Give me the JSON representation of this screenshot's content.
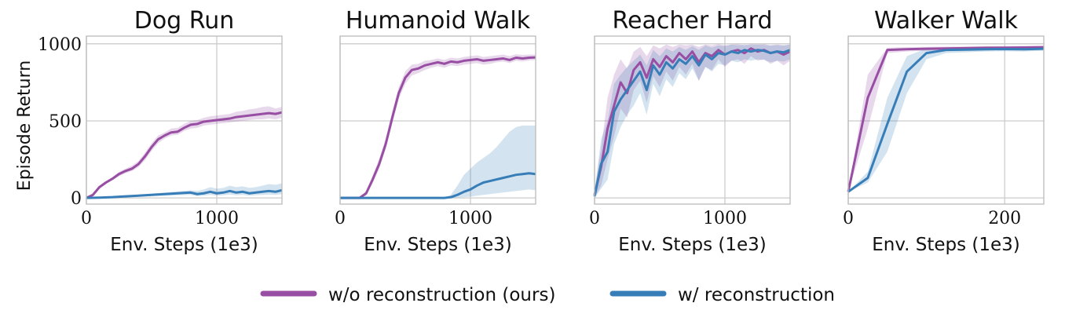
{
  "figure": {
    "ylabel": "Episode Return",
    "legend": [
      {
        "label": "w/o reconstruction (ours)",
        "color": "#984ea3"
      },
      {
        "label": "w/ reconstruction",
        "color": "#377eb8"
      }
    ]
  },
  "chart_data": [
    {
      "type": "line",
      "title": "Dog Run",
      "xlabel": "Env. Steps (1e3)",
      "ylabel": "Episode Return",
      "xlim": [
        0,
        1500
      ],
      "ylim": [
        -40,
        1050
      ],
      "xticks": [
        0,
        1000
      ],
      "yticks": [
        0,
        500,
        1000
      ],
      "ytick_labels": [
        "0",
        "500",
        "1000"
      ],
      "series": [
        {
          "name": "w/o reconstruction (ours)",
          "color": "#984ea3",
          "x": [
            0,
            50,
            100,
            150,
            200,
            250,
            300,
            350,
            400,
            450,
            500,
            550,
            600,
            650,
            700,
            750,
            800,
            850,
            900,
            950,
            1000,
            1050,
            1100,
            1150,
            1200,
            1250,
            1300,
            1350,
            1400,
            1450,
            1500
          ],
          "y": [
            0,
            20,
            70,
            100,
            125,
            155,
            175,
            190,
            220,
            270,
            330,
            380,
            405,
            425,
            430,
            455,
            475,
            480,
            495,
            500,
            505,
            510,
            515,
            525,
            530,
            535,
            540,
            545,
            550,
            545,
            555
          ],
          "lower": [
            0,
            15,
            60,
            90,
            115,
            140,
            160,
            175,
            200,
            245,
            305,
            355,
            385,
            405,
            410,
            435,
            450,
            455,
            470,
            475,
            480,
            485,
            490,
            495,
            500,
            505,
            510,
            510,
            515,
            510,
            520
          ],
          "upper": [
            0,
            25,
            80,
            110,
            135,
            170,
            190,
            210,
            240,
            295,
            355,
            405,
            425,
            450,
            455,
            480,
            500,
            505,
            520,
            530,
            535,
            540,
            545,
            560,
            565,
            575,
            580,
            590,
            595,
            580,
            590
          ]
        },
        {
          "name": "w/ reconstruction",
          "color": "#377eb8",
          "x": [
            0,
            100,
            200,
            300,
            400,
            500,
            600,
            700,
            800,
            850,
            900,
            950,
            1000,
            1050,
            1100,
            1150,
            1200,
            1250,
            1300,
            1350,
            1400,
            1450,
            1500
          ],
          "y": [
            0,
            2,
            5,
            10,
            15,
            20,
            25,
            30,
            35,
            25,
            30,
            40,
            30,
            35,
            45,
            35,
            40,
            30,
            35,
            40,
            45,
            40,
            50
          ],
          "lower": [
            0,
            0,
            2,
            5,
            8,
            12,
            15,
            18,
            20,
            12,
            15,
            20,
            15,
            18,
            22,
            18,
            20,
            15,
            18,
            20,
            22,
            20,
            25
          ],
          "upper": [
            0,
            5,
            8,
            15,
            22,
            28,
            35,
            42,
            50,
            45,
            55,
            70,
            60,
            65,
            80,
            70,
            75,
            65,
            70,
            80,
            90,
            85,
            95
          ]
        }
      ]
    },
    {
      "type": "line",
      "title": "Humanoid Walk",
      "xlabel": "Env. Steps (1e3)",
      "ylabel": "",
      "xlim": [
        0,
        1500
      ],
      "ylim": [
        -40,
        1050
      ],
      "xticks": [
        0,
        1000
      ],
      "yticks": [
        0,
        500,
        1000
      ],
      "ytick_labels": [],
      "series": [
        {
          "name": "w/o reconstruction (ours)",
          "color": "#984ea3",
          "x": [
            0,
            100,
            150,
            200,
            250,
            300,
            350,
            400,
            450,
            500,
            550,
            600,
            650,
            700,
            750,
            800,
            850,
            900,
            950,
            1000,
            1050,
            1100,
            1150,
            1200,
            1250,
            1300,
            1350,
            1400,
            1450,
            1500
          ],
          "y": [
            0,
            0,
            0,
            30,
            120,
            220,
            350,
            520,
            680,
            780,
            830,
            840,
            860,
            870,
            880,
            870,
            885,
            880,
            890,
            895,
            900,
            890,
            895,
            900,
            905,
            895,
            910,
            905,
            910,
            912
          ],
          "lower": [
            0,
            0,
            0,
            15,
            95,
            190,
            315,
            480,
            640,
            740,
            795,
            810,
            830,
            845,
            855,
            845,
            860,
            855,
            865,
            870,
            875,
            865,
            870,
            880,
            885,
            875,
            890,
            885,
            892,
            895
          ],
          "upper": [
            0,
            0,
            0,
            45,
            145,
            255,
            385,
            560,
            720,
            820,
            865,
            870,
            890,
            895,
            905,
            895,
            910,
            905,
            915,
            920,
            925,
            915,
            920,
            925,
            930,
            920,
            932,
            928,
            930,
            930
          ]
        },
        {
          "name": "w/ reconstruction",
          "color": "#377eb8",
          "x": [
            0,
            200,
            400,
            600,
            800,
            850,
            900,
            950,
            1000,
            1050,
            1100,
            1150,
            1200,
            1250,
            1300,
            1350,
            1400,
            1450,
            1500
          ],
          "y": [
            0,
            0,
            0,
            0,
            0,
            5,
            20,
            40,
            55,
            80,
            100,
            110,
            120,
            130,
            140,
            150,
            155,
            160,
            155
          ],
          "lower": [
            0,
            0,
            0,
            0,
            0,
            0,
            2,
            5,
            8,
            15,
            20,
            25,
            30,
            35,
            40,
            45,
            50,
            55,
            50
          ],
          "upper": [
            0,
            0,
            0,
            0,
            0,
            20,
            80,
            150,
            190,
            230,
            260,
            290,
            330,
            380,
            430,
            460,
            470,
            470,
            470
          ]
        }
      ]
    },
    {
      "type": "line",
      "title": "Reacher Hard",
      "xlabel": "Env. Steps (1e3)",
      "ylabel": "",
      "xlim": [
        0,
        1500
      ],
      "ylim": [
        -40,
        1050
      ],
      "xticks": [
        0,
        1000
      ],
      "yticks": [
        0,
        500,
        1000
      ],
      "ytick_labels": [],
      "series": [
        {
          "name": "w/o reconstruction (ours)",
          "color": "#984ea3",
          "x": [
            0,
            50,
            100,
            150,
            200,
            250,
            300,
            350,
            400,
            450,
            500,
            550,
            600,
            650,
            700,
            750,
            800,
            850,
            900,
            950,
            1000,
            1050,
            1100,
            1150,
            1200,
            1250,
            1300,
            1350,
            1400,
            1450,
            1500
          ],
          "y": [
            20,
            200,
            450,
            600,
            750,
            680,
            830,
            880,
            780,
            900,
            850,
            920,
            880,
            940,
            900,
            950,
            880,
            940,
            920,
            960,
            930,
            950,
            960,
            940,
            970,
            950,
            960,
            940,
            950,
            930,
            950
          ],
          "lower": [
            0,
            80,
            250,
            400,
            580,
            520,
            700,
            760,
            620,
            790,
            720,
            820,
            760,
            850,
            800,
            870,
            760,
            850,
            830,
            900,
            850,
            890,
            900,
            870,
            920,
            890,
            900,
            870,
            890,
            860,
            890
          ],
          "upper": [
            50,
            320,
            650,
            800,
            900,
            840,
            950,
            980,
            920,
            990,
            970,
            995,
            980,
            995,
            990,
            995,
            980,
            995,
            990,
            998,
            990,
            995,
            998,
            990,
            998,
            995,
            998,
            990,
            995,
            990,
            995
          ]
        },
        {
          "name": "w/ reconstruction",
          "color": "#377eb8",
          "x": [
            0,
            50,
            100,
            150,
            200,
            250,
            300,
            350,
            400,
            450,
            500,
            550,
            600,
            650,
            700,
            750,
            800,
            850,
            900,
            950,
            1000,
            1050,
            1100,
            1150,
            1200,
            1250,
            1300,
            1350,
            1400,
            1450,
            1500
          ],
          "y": [
            10,
            220,
            300,
            560,
            640,
            700,
            760,
            820,
            700,
            860,
            800,
            880,
            840,
            900,
            870,
            920,
            860,
            930,
            900,
            940,
            930,
            950,
            940,
            960,
            950,
            960,
            955,
            940,
            950,
            945,
            960
          ],
          "lower": [
            0,
            60,
            120,
            350,
            460,
            540,
            600,
            680,
            540,
            740,
            660,
            770,
            720,
            810,
            770,
            840,
            760,
            850,
            820,
            870,
            860,
            890,
            880,
            900,
            890,
            900,
            895,
            880,
            890,
            885,
            900
          ],
          "upper": [
            40,
            380,
            500,
            740,
            800,
            850,
            890,
            930,
            860,
            960,
            920,
            970,
            950,
            980,
            960,
            985,
            960,
            990,
            975,
            990,
            985,
            995,
            990,
            995,
            992,
            995,
            993,
            990,
            992,
            990,
            995
          ]
        }
      ]
    },
    {
      "type": "line",
      "title": "Walker Walk",
      "xlabel": "Env. Steps (1e3)",
      "ylabel": "",
      "xlim": [
        0,
        250
      ],
      "ylim": [
        -40,
        1050
      ],
      "xticks": [
        0,
        200
      ],
      "yticks": [
        0,
        500,
        1000
      ],
      "ytick_labels": [],
      "series": [
        {
          "name": "w/o reconstruction (ours)",
          "color": "#984ea3",
          "x": [
            0,
            25,
            50,
            75,
            100,
            125,
            150,
            175,
            200,
            225,
            250
          ],
          "y": [
            40,
            650,
            960,
            965,
            968,
            970,
            972,
            974,
            975,
            976,
            978
          ],
          "lower": [
            40,
            450,
            940,
            950,
            955,
            958,
            960,
            962,
            964,
            965,
            966
          ],
          "upper": [
            40,
            800,
            975,
            978,
            980,
            982,
            983,
            984,
            985,
            986,
            987
          ]
        },
        {
          "name": "w/ reconstruction",
          "color": "#377eb8",
          "x": [
            0,
            25,
            50,
            75,
            100,
            125,
            150,
            175,
            200,
            225,
            250
          ],
          "y": [
            40,
            130,
            480,
            820,
            940,
            960,
            962,
            965,
            966,
            965,
            968
          ],
          "lower": [
            40,
            100,
            300,
            680,
            900,
            940,
            945,
            950,
            952,
            950,
            955
          ],
          "upper": [
            40,
            170,
            650,
            920,
            970,
            975,
            978,
            980,
            980,
            978,
            982
          ]
        }
      ]
    }
  ]
}
